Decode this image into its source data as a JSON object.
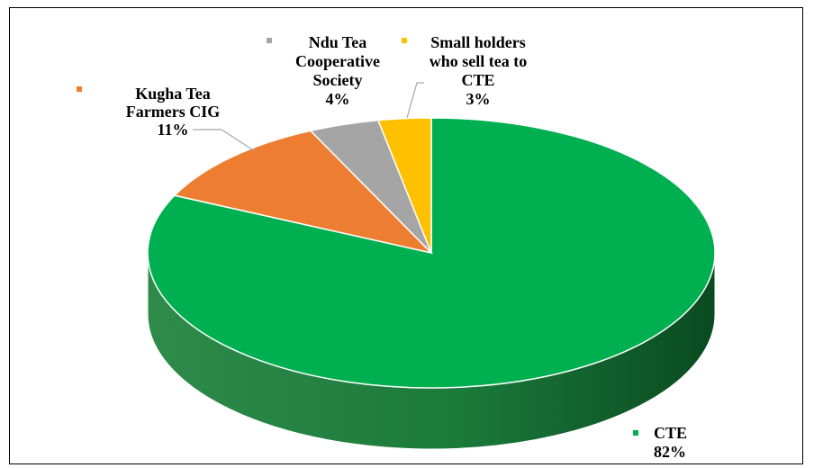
{
  "chart_data": {
    "type": "pie",
    "title": "",
    "slices": [
      {
        "label_lines": [
          "CTE"
        ],
        "percent_label": "82%",
        "value": 82,
        "color": "#00B050"
      },
      {
        "label_lines": [
          "Kugha Tea",
          "Farmers CIG"
        ],
        "percent_label": "11%",
        "value": 11,
        "color": "#ED7D31"
      },
      {
        "label_lines": [
          "Ndu Tea",
          "Cooperative",
          "Society"
        ],
        "percent_label": "4%",
        "value": 4,
        "color": "#A5A5A5"
      },
      {
        "label_lines": [
          "Small holders",
          "who sell tea to",
          "CTE"
        ],
        "percent_label": "3%",
        "value": 3,
        "color": "#FFC000"
      }
    ]
  }
}
